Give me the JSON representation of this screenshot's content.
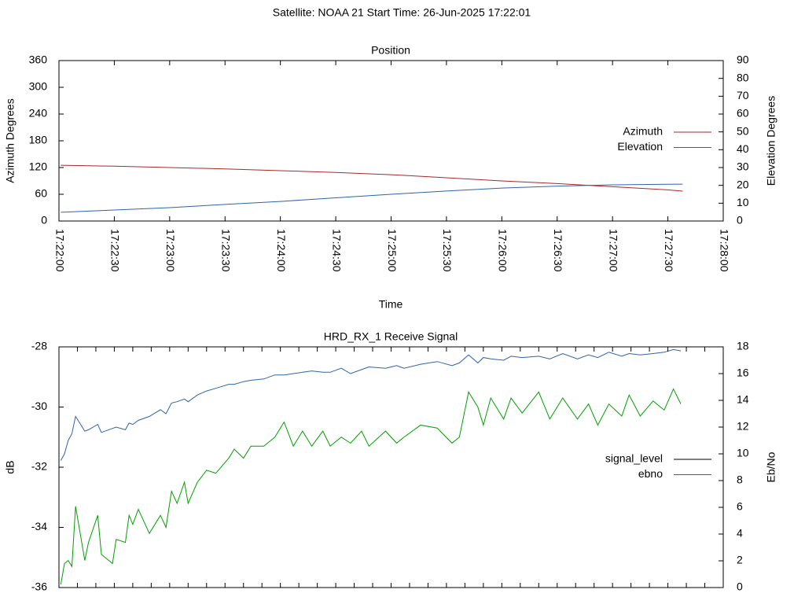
{
  "title": "Satellite: NOAA 21    Start Time: 26-Jun-2025 17:22:01",
  "chart_data": [
    {
      "type": "line",
      "title": "Position",
      "xlabel": "Time",
      "ylabel": "Azimuth Degrees",
      "y2label": "Elevation Degrees",
      "legend": "right",
      "x": [
        "17:22:01",
        "17:22:30",
        "17:23:00",
        "17:23:30",
        "17:24:00",
        "17:24:30",
        "17:25:00",
        "17:25:30",
        "17:26:00",
        "17:26:30",
        "17:27:00",
        "17:27:30",
        "17:27:38"
      ],
      "xlim": [
        "17:22:00",
        "17:28:00"
      ],
      "xticks": [
        "17:22:00",
        "17:22:30",
        "17:23:00",
        "17:23:30",
        "17:24:00",
        "17:24:30",
        "17:25:00",
        "17:25:30",
        "17:26:00",
        "17:26:30",
        "17:27:00",
        "17:27:30",
        "17:28:00"
      ],
      "ylim": [
        0,
        360
      ],
      "yticks": [
        0,
        60,
        120,
        180,
        240,
        300,
        360
      ],
      "y2lim": [
        0,
        90
      ],
      "y2ticks": [
        0,
        10,
        20,
        30,
        40,
        50,
        60,
        70,
        80,
        90
      ],
      "series": [
        {
          "name": "Azimuth",
          "color": "#a52a2a",
          "values": [
            125,
            123,
            120,
            117,
            113,
            109,
            104,
            97,
            90,
            84,
            77,
            70,
            67
          ]
        },
        {
          "name": "Elevation",
          "color": "#2f64a8",
          "axis": "y2",
          "values": [
            4.9,
            6.2,
            7.5,
            9.3,
            11,
            13,
            15,
            16.8,
            18.5,
            19.6,
            20.3,
            20.6,
            20.7
          ]
        }
      ]
    },
    {
      "type": "line",
      "title": "HRD_RX_1 Receive Signal",
      "ylabel": "dB",
      "y2label": "Eb/No",
      "legend": "right",
      "xtick_labels": false,
      "x": [
        "17:22:01",
        "17:22:03",
        "17:22:05",
        "17:22:07",
        "17:22:09",
        "17:22:14",
        "17:22:16",
        "17:22:21",
        "17:22:23",
        "17:22:29",
        "17:22:31",
        "17:22:36",
        "17:22:38",
        "17:22:40",
        "17:22:43",
        "17:22:49",
        "17:22:55",
        "17:22:58",
        "17:23:01",
        "17:23:04",
        "17:23:08",
        "17:23:10",
        "17:23:15",
        "17:23:20",
        "17:23:25",
        "17:23:32",
        "17:23:35",
        "17:23:40",
        "17:23:44",
        "17:23:51",
        "17:23:57",
        "17:24:02",
        "17:24:07",
        "17:24:12",
        "17:24:17",
        "17:24:23",
        "17:24:27",
        "17:24:33",
        "17:24:38",
        "17:24:44",
        "17:24:48",
        "17:24:57",
        "17:25:03",
        "17:25:07",
        "17:25:16",
        "17:25:25",
        "17:25:33",
        "17:25:37",
        "17:25:42",
        "17:25:47",
        "17:25:50",
        "17:25:54",
        "17:26:01",
        "17:26:05",
        "17:26:11",
        "17:26:20",
        "17:26:26",
        "17:26:33",
        "17:26:41",
        "17:26:47",
        "17:26:52",
        "17:26:58",
        "17:27:05",
        "17:27:09",
        "17:27:15",
        "17:27:22",
        "17:27:28",
        "17:27:33",
        "17:27:37"
      ],
      "xlim": [
        "17:22:00",
        "17:28:00"
      ],
      "xticks": [
        "17:22:00",
        "17:22:10",
        "17:22:20",
        "17:22:30",
        "17:22:40",
        "17:22:50",
        "17:23:00",
        "17:23:10",
        "17:23:20",
        "17:23:30",
        "17:23:40",
        "17:23:50",
        "17:24:00",
        "17:24:10",
        "17:24:20",
        "17:24:30",
        "17:24:40",
        "17:24:50",
        "17:25:00",
        "17:25:10",
        "17:25:20",
        "17:25:30",
        "17:25:40",
        "17:25:50",
        "17:26:00",
        "17:26:10",
        "17:26:20",
        "17:26:30",
        "17:26:40",
        "17:26:50",
        "17:27:00",
        "17:27:10",
        "17:27:20",
        "17:27:30",
        "17:27:40",
        "17:27:50",
        "17:28:00"
      ],
      "ylim": [
        -36,
        -28
      ],
      "yticks": [
        -36,
        -34,
        -32,
        -30,
        -28
      ],
      "y2lim": [
        0,
        18
      ],
      "y2ticks": [
        0,
        2,
        4,
        6,
        8,
        10,
        12,
        14,
        16,
        18
      ],
      "series": [
        {
          "name": "signal_level",
          "color": "#00a000",
          "legend_color": "#000000",
          "values": [
            -35.9,
            -35.2,
            -35.1,
            -35.3,
            -33.3,
            -35.1,
            -34.5,
            -33.6,
            -34.9,
            -35.2,
            -34.4,
            -34.5,
            -33.6,
            -33.9,
            -33.4,
            -34.2,
            -33.6,
            -34.0,
            -32.8,
            -33.2,
            -32.5,
            -33.2,
            -32.5,
            -32.1,
            -32.2,
            -31.7,
            -31.4,
            -31.7,
            -31.3,
            -31.3,
            -31.0,
            -30.5,
            -31.3,
            -30.8,
            -31.3,
            -30.8,
            -31.3,
            -31.0,
            -31.2,
            -30.8,
            -31.3,
            -30.8,
            -31.2,
            -31.0,
            -30.6,
            -30.7,
            -31.2,
            -31.0,
            -29.5,
            -30.0,
            -30.6,
            -29.7,
            -30.4,
            -29.7,
            -30.2,
            -29.5,
            -30.4,
            -29.7,
            -30.4,
            -29.9,
            -30.6,
            -29.9,
            -30.3,
            -29.6,
            -30.3,
            -29.8,
            -30.1,
            -29.4,
            -29.9
          ]
        },
        {
          "name": "ebno",
          "color": "#2f64a8",
          "axis": "y2",
          "values": [
            9.5,
            10,
            11,
            11.5,
            12.8,
            11.7,
            11.8,
            12.2,
            11.6,
            11.9,
            12.0,
            11.8,
            12.3,
            12.2,
            12.5,
            12.8,
            13.3,
            13.0,
            13.8,
            13.9,
            14.1,
            13.9,
            14.4,
            14.7,
            14.9,
            15.2,
            15.2,
            15.4,
            15.5,
            15.6,
            15.9,
            15.9,
            16.0,
            16.1,
            16.2,
            16.1,
            16.1,
            16.4,
            16.0,
            16.3,
            16.5,
            16.4,
            16.6,
            16.4,
            16.7,
            16.9,
            16.6,
            16.8,
            17.4,
            16.8,
            17.2,
            17.1,
            17.0,
            17.3,
            17.2,
            17.3,
            17.1,
            17.5,
            17.1,
            17.4,
            17.2,
            17.6,
            17.3,
            17.5,
            17.4,
            17.5,
            17.6,
            17.8,
            17.7
          ]
        }
      ]
    }
  ]
}
